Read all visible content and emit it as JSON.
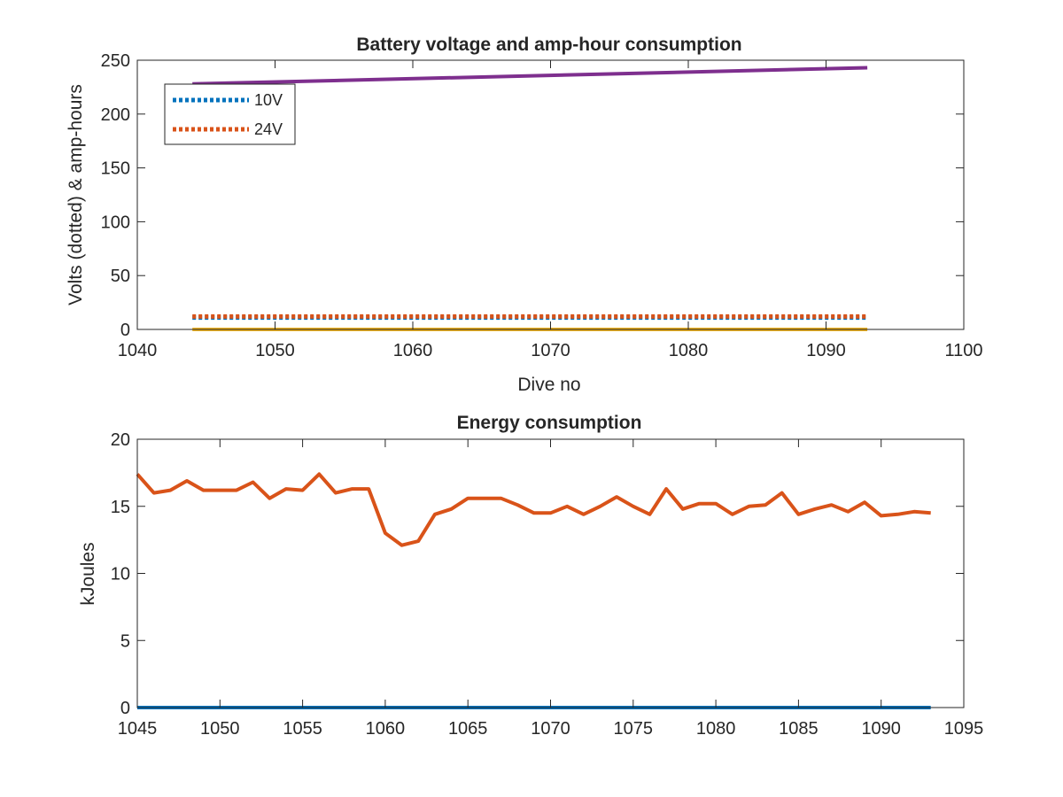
{
  "chart_data": [
    {
      "type": "line",
      "title": "Battery voltage and amp-hour consumption",
      "xlabel": "Dive no",
      "ylabel": "Volts (dotted) & amp-hours",
      "xlim": [
        1040,
        1100
      ],
      "ylim": [
        0,
        250
      ],
      "xticks": [
        "1040",
        "1050",
        "1060",
        "1070",
        "1080",
        "1090",
        "1100"
      ],
      "yticks": [
        "0",
        "50",
        "100",
        "150",
        "200",
        "250"
      ],
      "grid": false,
      "legend_position": "top-left",
      "x": [
        1044,
        1093
      ],
      "series": [
        {
          "name": "10V",
          "style": "dotted",
          "color": "#0072BD",
          "values": [
            11,
            11
          ]
        },
        {
          "name": "24V",
          "style": "dotted",
          "color": "#D95319",
          "values": [
            12,
            12
          ]
        },
        {
          "style": "solid",
          "color": "#EDB120",
          "values": [
            0,
            0
          ]
        },
        {
          "style": "solid",
          "color": "#7E2F8E",
          "values": [
            228,
            243
          ]
        }
      ]
    },
    {
      "type": "line",
      "title": "Energy consumption",
      "xlabel": "",
      "ylabel": "kJoules",
      "xlim": [
        1045,
        1095
      ],
      "ylim": [
        0,
        20
      ],
      "xticks": [
        "1045",
        "1050",
        "1055",
        "1060",
        "1065",
        "1070",
        "1075",
        "1080",
        "1085",
        "1090",
        "1095"
      ],
      "yticks": [
        "0",
        "5",
        "10",
        "15",
        "20"
      ],
      "grid": false,
      "x": [
        1045,
        1046,
        1047,
        1048,
        1049,
        1050,
        1051,
        1052,
        1053,
        1054,
        1055,
        1056,
        1057,
        1058,
        1059,
        1060,
        1061,
        1062,
        1063,
        1064,
        1065,
        1066,
        1067,
        1068,
        1069,
        1070,
        1071,
        1072,
        1073,
        1074,
        1075,
        1076,
        1077,
        1078,
        1079,
        1080,
        1081,
        1082,
        1083,
        1084,
        1085,
        1086,
        1087,
        1088,
        1089,
        1090,
        1091,
        1092,
        1093
      ],
      "series": [
        {
          "style": "solid",
          "color": "#D95319",
          "values": [
            17.4,
            16.0,
            16.2,
            16.9,
            16.2,
            16.2,
            16.2,
            16.8,
            15.6,
            16.3,
            16.2,
            17.4,
            16.0,
            16.3,
            16.3,
            13.0,
            12.1,
            12.4,
            14.4,
            14.8,
            15.6,
            15.6,
            15.6,
            15.1,
            14.5,
            14.5,
            15.0,
            14.4,
            15.0,
            15.7,
            15.0,
            14.4,
            16.3,
            14.8,
            15.2,
            15.2,
            14.4,
            15.0,
            15.1,
            16.0,
            14.4,
            14.8,
            15.1,
            14.6,
            15.3,
            14.3,
            14.4,
            14.6,
            14.5
          ]
        },
        {
          "style": "solid",
          "color": "#0072BD",
          "values": [
            0,
            0,
            0,
            0,
            0,
            0,
            0,
            0,
            0,
            0,
            0,
            0,
            0,
            0,
            0,
            0,
            0,
            0,
            0,
            0,
            0,
            0,
            0,
            0,
            0,
            0,
            0,
            0,
            0,
            0,
            0,
            0,
            0,
            0,
            0,
            0,
            0,
            0,
            0,
            0,
            0,
            0,
            0,
            0,
            0,
            0,
            0,
            0,
            0
          ]
        }
      ]
    }
  ]
}
